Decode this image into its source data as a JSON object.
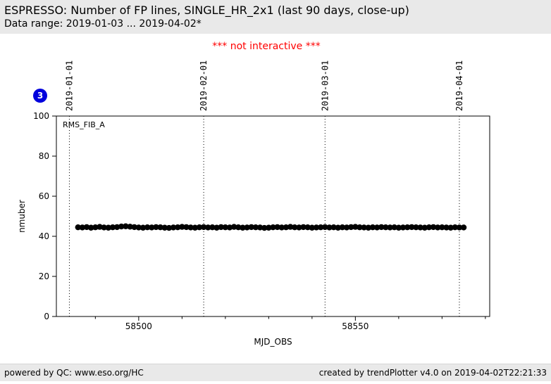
{
  "header": {
    "title": "ESPRESSO: Number of FP lines, SINGLE_HR_2x1 (last 90 days, close-up)",
    "subtitle": "Data range: 2019-01-03 ... 2019-04-02*"
  },
  "notice": {
    "text": "*** not interactive ***",
    "color": "#ff0000"
  },
  "badge": {
    "label": "3",
    "color": "#0000dd"
  },
  "footer": {
    "left": "powered by QC: www.eso.org/HC",
    "right": "created by trendPlotter v4.0 on 2019-04-02T22:21:33"
  },
  "chart_data": {
    "type": "scatter",
    "title": "",
    "xlabel": "MJD_OBS",
    "ylabel": "nmuber",
    "series_label": "RMS_FIB_A",
    "xlim": [
      58481,
      58581
    ],
    "ylim": [
      0,
      100
    ],
    "x_major_ticks": [
      58500,
      58550
    ],
    "x_minor_ticks": [
      58490,
      58510,
      58520,
      58530,
      58540,
      58560,
      58570,
      58580
    ],
    "y_ticks": [
      0,
      20,
      40,
      60,
      80,
      100
    ],
    "grid": "date-vlines-dotted",
    "legend_position": "none",
    "date_lines": [
      {
        "label": "2019-01-01",
        "mjd": 58484
      },
      {
        "label": "2019-02-01",
        "mjd": 58515
      },
      {
        "label": "2019-03-01",
        "mjd": 58543
      },
      {
        "label": "2019-04-01",
        "mjd": 58574
      }
    ],
    "marker_color": "#000000",
    "points": [
      [
        58486,
        44.5
      ],
      [
        58487,
        44.4
      ],
      [
        58488,
        44.6
      ],
      [
        58489,
        44.3
      ],
      [
        58490,
        44.5
      ],
      [
        58491,
        44.7
      ],
      [
        58492,
        44.4
      ],
      [
        58493,
        44.3
      ],
      [
        58494,
        44.5
      ],
      [
        58495,
        44.6
      ],
      [
        58496,
        44.9
      ],
      [
        58497,
        45.0
      ],
      [
        58498,
        44.8
      ],
      [
        58499,
        44.6
      ],
      [
        58500,
        44.4
      ],
      [
        58501,
        44.3
      ],
      [
        58502,
        44.5
      ],
      [
        58503,
        44.4
      ],
      [
        58504,
        44.6
      ],
      [
        58505,
        44.5
      ],
      [
        58506,
        44.3
      ],
      [
        58507,
        44.2
      ],
      [
        58508,
        44.4
      ],
      [
        58509,
        44.5
      ],
      [
        58510,
        44.7
      ],
      [
        58511,
        44.6
      ],
      [
        58512,
        44.4
      ],
      [
        58513,
        44.3
      ],
      [
        58514,
        44.5
      ],
      [
        58515,
        44.6
      ],
      [
        58516,
        44.4
      ],
      [
        58517,
        44.5
      ],
      [
        58518,
        44.3
      ],
      [
        58519,
        44.6
      ],
      [
        58520,
        44.5
      ],
      [
        58521,
        44.4
      ],
      [
        58522,
        44.7
      ],
      [
        58523,
        44.5
      ],
      [
        58524,
        44.3
      ],
      [
        58525,
        44.4
      ],
      [
        58526,
        44.6
      ],
      [
        58527,
        44.5
      ],
      [
        58528,
        44.4
      ],
      [
        58529,
        44.2
      ],
      [
        58530,
        44.3
      ],
      [
        58531,
        44.5
      ],
      [
        58532,
        44.6
      ],
      [
        58533,
        44.4
      ],
      [
        58534,
        44.5
      ],
      [
        58535,
        44.7
      ],
      [
        58536,
        44.5
      ],
      [
        58537,
        44.4
      ],
      [
        58538,
        44.6
      ],
      [
        58539,
        44.5
      ],
      [
        58540,
        44.3
      ],
      [
        58541,
        44.4
      ],
      [
        58542,
        44.5
      ],
      [
        58543,
        44.6
      ],
      [
        58544,
        44.4
      ],
      [
        58545,
        44.5
      ],
      [
        58546,
        44.3
      ],
      [
        58547,
        44.5
      ],
      [
        58548,
        44.4
      ],
      [
        58549,
        44.6
      ],
      [
        58550,
        44.7
      ],
      [
        58551,
        44.5
      ],
      [
        58552,
        44.4
      ],
      [
        58553,
        44.3
      ],
      [
        58554,
        44.5
      ],
      [
        58555,
        44.4
      ],
      [
        58556,
        44.6
      ],
      [
        58557,
        44.5
      ],
      [
        58558,
        44.4
      ],
      [
        58559,
        44.5
      ],
      [
        58560,
        44.3
      ],
      [
        58561,
        44.4
      ],
      [
        58562,
        44.5
      ],
      [
        58563,
        44.6
      ],
      [
        58564,
        44.5
      ],
      [
        58565,
        44.4
      ],
      [
        58566,
        44.3
      ],
      [
        58567,
        44.5
      ],
      [
        58568,
        44.6
      ],
      [
        58569,
        44.4
      ],
      [
        58570,
        44.5
      ],
      [
        58571,
        44.4
      ],
      [
        58572,
        44.3
      ],
      [
        58573,
        44.5
      ],
      [
        58574,
        44.4
      ],
      [
        58575,
        44.4
      ]
    ]
  }
}
